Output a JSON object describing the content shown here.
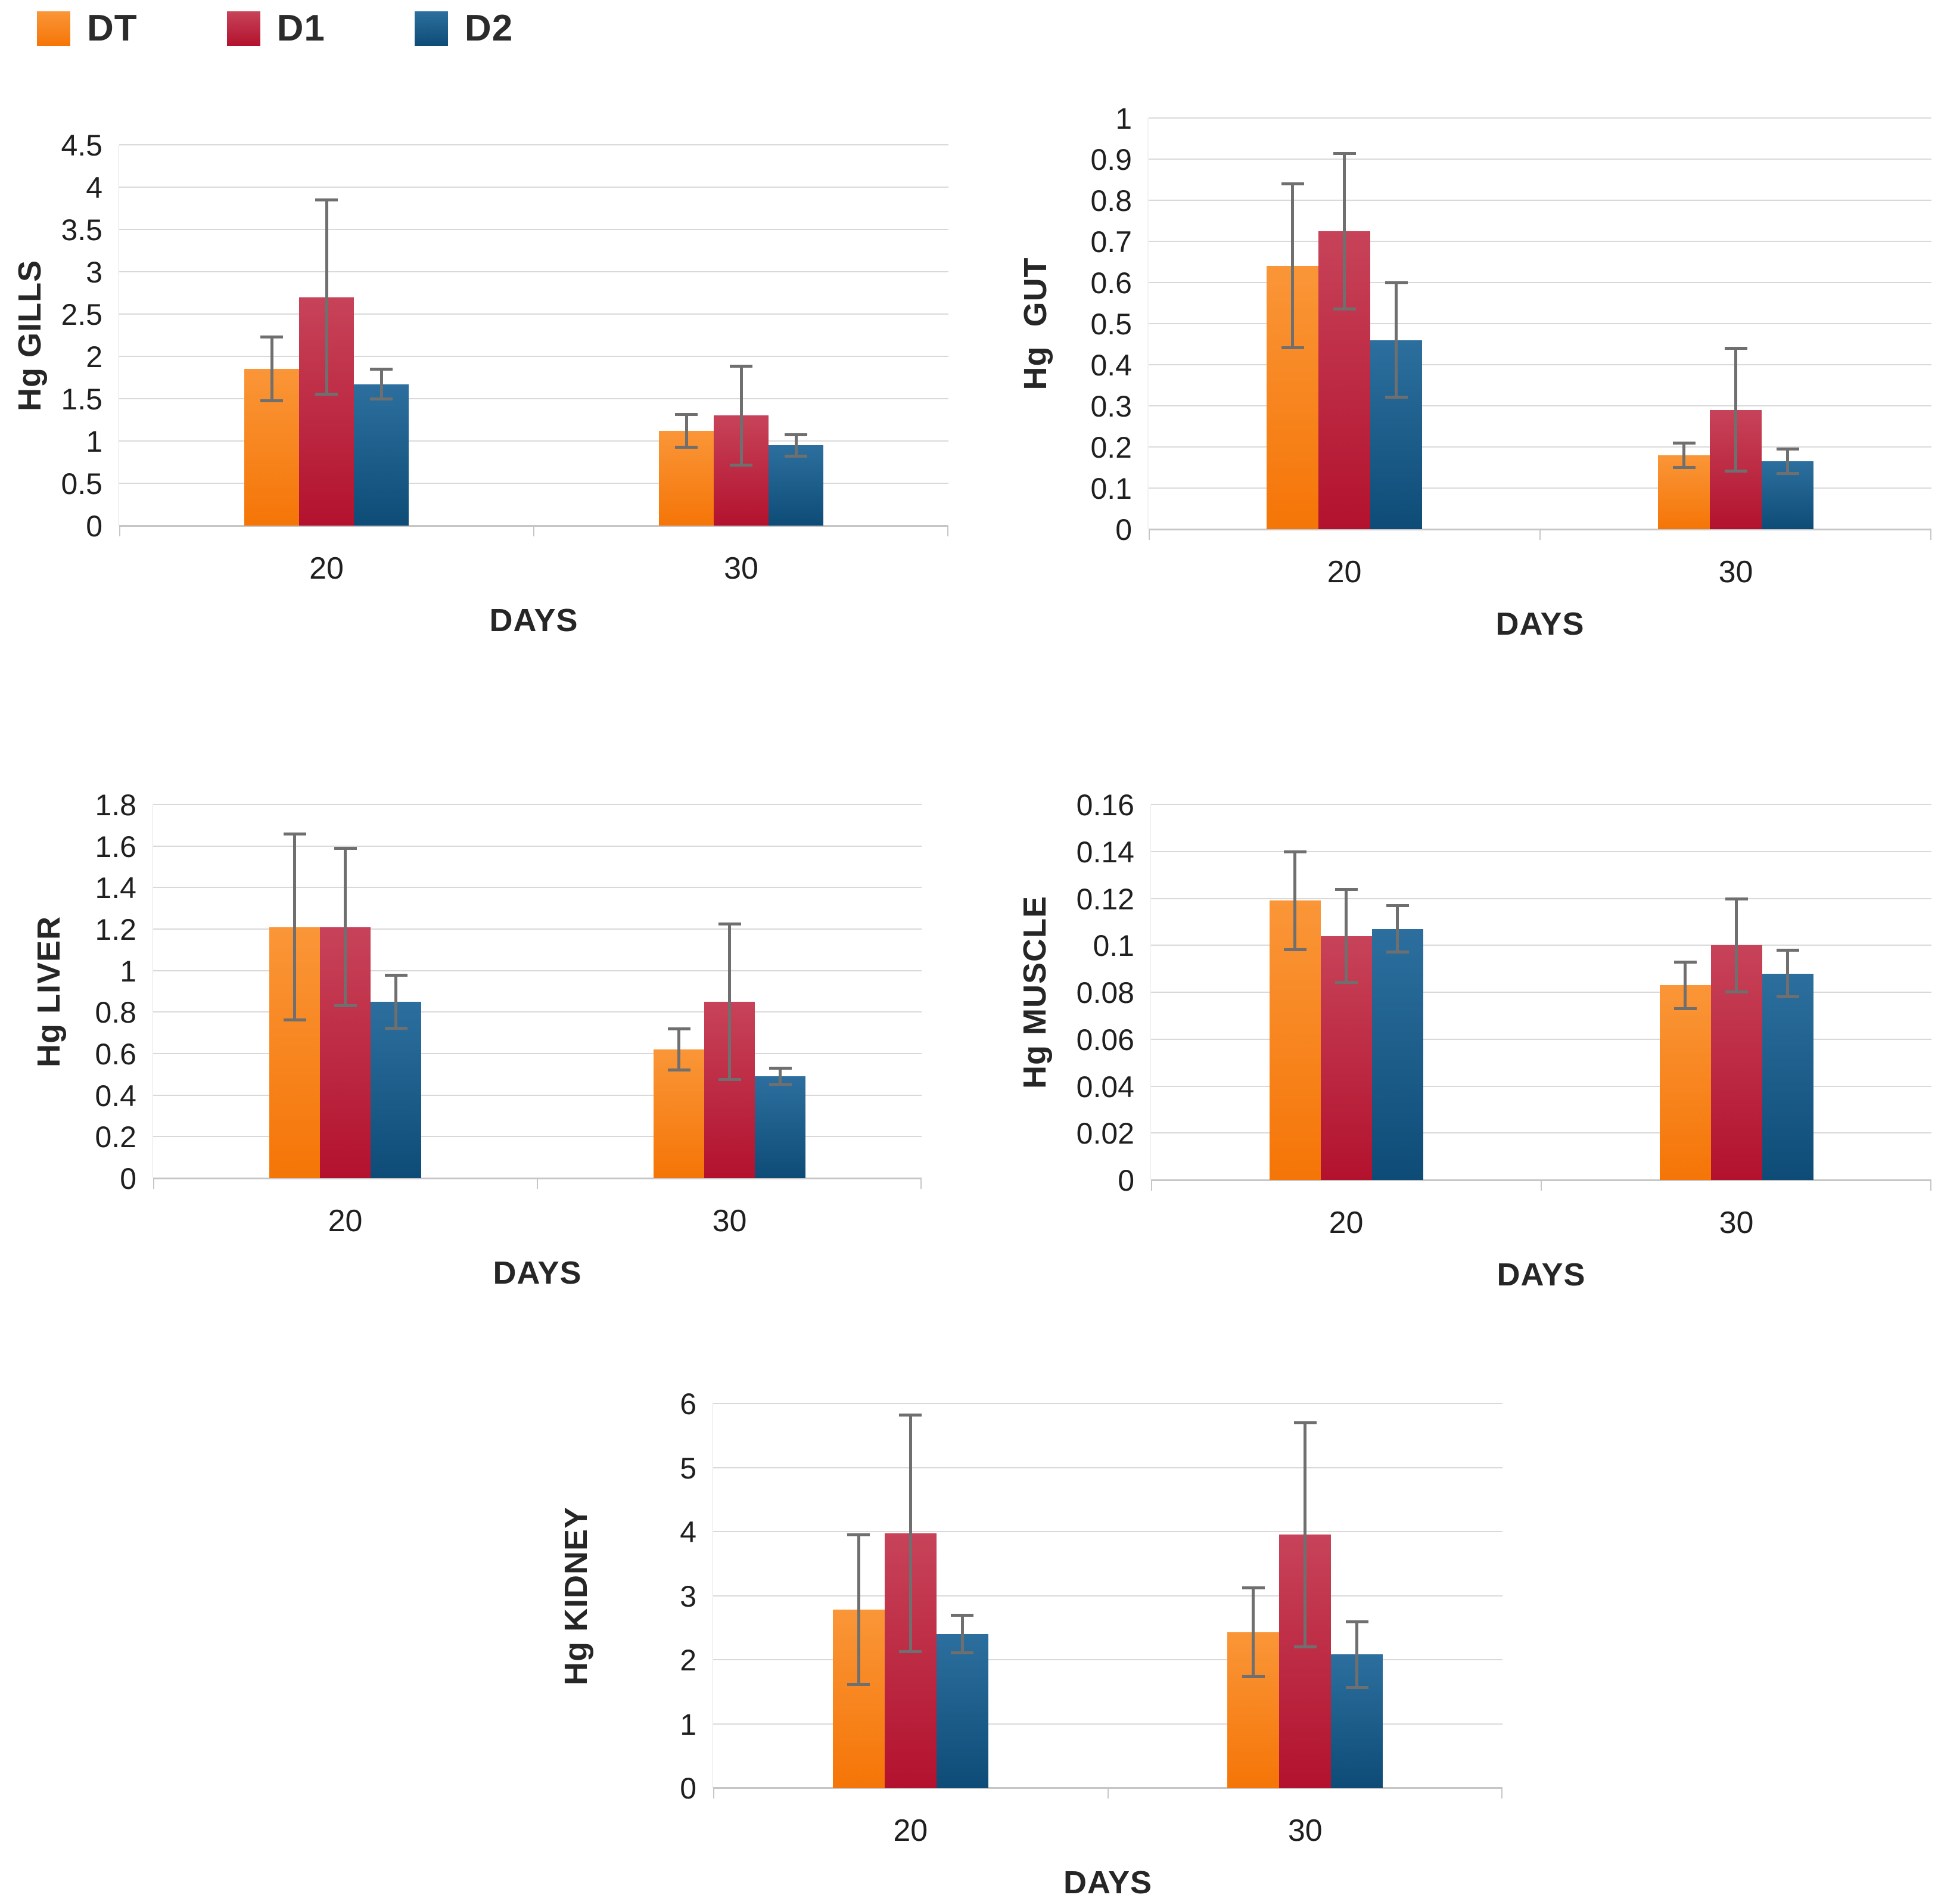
{
  "legend": {
    "items": [
      {
        "label": "DT",
        "color": "#F8780D",
        "gradient_top": "#FA9638",
        "gradient_bottom": "#F57507"
      },
      {
        "label": "D1",
        "color": "#C51F3C",
        "gradient_top": "#C74359",
        "gradient_bottom": "#B3122E"
      },
      {
        "label": "D2",
        "color": "#1C6392",
        "gradient_top": "#2C6F9E",
        "gradient_bottom": "#0E4C77"
      }
    ]
  },
  "error_bar_color": "#6f6f6f",
  "gridline_color": "#d9d9d9",
  "chart_data": [
    {
      "type": "bar",
      "ylabel": "Hg GILLS",
      "xlabel": "DAYS",
      "categories": [
        "20",
        "30"
      ],
      "ylim": [
        0,
        4.5
      ],
      "ytick_labels": [
        "0",
        "0.5",
        "1",
        "1.5",
        "2",
        "2.5",
        "3",
        "3.5",
        "4",
        "4.5"
      ],
      "grid": true,
      "legend_position": "top-left-shared",
      "series": [
        {
          "name": "DT",
          "values": [
            1.85,
            1.12
          ],
          "errors": [
            0.38,
            0.2
          ]
        },
        {
          "name": "D1",
          "values": [
            2.7,
            1.3
          ],
          "errors": [
            1.15,
            0.59
          ]
        },
        {
          "name": "D2",
          "values": [
            1.67,
            0.95
          ],
          "errors": [
            0.18,
            0.13
          ]
        }
      ]
    },
    {
      "type": "bar",
      "ylabel": "Hg  GUT",
      "xlabel": "DAYS",
      "categories": [
        "20",
        "30"
      ],
      "ylim": [
        0,
        1
      ],
      "ytick_labels": [
        "0",
        "0.1",
        "0.2",
        "0.3",
        "0.4",
        "0.5",
        "0.6",
        "0.7",
        "0.8",
        "0.9",
        "1"
      ],
      "grid": true,
      "legend_position": "top-left-shared",
      "series": [
        {
          "name": "DT",
          "values": [
            0.64,
            0.18
          ],
          "errors": [
            0.2,
            0.03
          ]
        },
        {
          "name": "D1",
          "values": [
            0.725,
            0.29
          ],
          "errors": [
            0.19,
            0.15
          ]
        },
        {
          "name": "D2",
          "values": [
            0.46,
            0.165
          ],
          "errors": [
            0.14,
            0.03
          ]
        }
      ]
    },
    {
      "type": "bar",
      "ylabel": "Hg LIVER",
      "xlabel": "DAYS",
      "categories": [
        "20",
        "30"
      ],
      "ylim": [
        0,
        1.8
      ],
      "ytick_labels": [
        "0",
        "0.2",
        "0.4",
        "0.6",
        "0.8",
        "1",
        "1.2",
        "1.4",
        "1.6",
        "1.8"
      ],
      "grid": true,
      "legend_position": "top-left-shared",
      "series": [
        {
          "name": "DT",
          "values": [
            1.21,
            0.62
          ],
          "errors": [
            0.45,
            0.1
          ]
        },
        {
          "name": "D1",
          "values": [
            1.21,
            0.85
          ],
          "errors": [
            0.38,
            0.375
          ]
        },
        {
          "name": "D2",
          "values": [
            0.85,
            0.49
          ],
          "errors": [
            0.13,
            0.04
          ]
        }
      ]
    },
    {
      "type": "bar",
      "ylabel": "Hg MUSCLE",
      "xlabel": "DAYS",
      "categories": [
        "20",
        "30"
      ],
      "ylim": [
        0,
        0.16
      ],
      "ytick_labels": [
        "0",
        "0.02",
        "0.04",
        "0.06",
        "0.08",
        "0.1",
        "0.12",
        "0.14",
        "0.16"
      ],
      "grid": true,
      "legend_position": "top-left-shared",
      "series": [
        {
          "name": "DT",
          "values": [
            0.119,
            0.083
          ],
          "errors": [
            0.021,
            0.01
          ]
        },
        {
          "name": "D1",
          "values": [
            0.104,
            0.1
          ],
          "errors": [
            0.02,
            0.02
          ]
        },
        {
          "name": "D2",
          "values": [
            0.107,
            0.088
          ],
          "errors": [
            0.01,
            0.01
          ]
        }
      ]
    },
    {
      "type": "bar",
      "ylabel": "Hg KIDNEY",
      "xlabel": "DAYS",
      "categories": [
        "20",
        "30"
      ],
      "ylim": [
        0,
        6
      ],
      "ytick_labels": [
        "0",
        "1",
        "2",
        "3",
        "4",
        "5",
        "6"
      ],
      "grid": true,
      "legend_position": "top-left-shared",
      "series": [
        {
          "name": "DT",
          "values": [
            2.78,
            2.43
          ],
          "errors": [
            1.17,
            0.7
          ]
        },
        {
          "name": "D1",
          "values": [
            3.97,
            3.95
          ],
          "errors": [
            1.85,
            1.75
          ]
        },
        {
          "name": "D2",
          "values": [
            2.4,
            2.08
          ],
          "errors": [
            0.3,
            0.52
          ]
        }
      ]
    }
  ]
}
